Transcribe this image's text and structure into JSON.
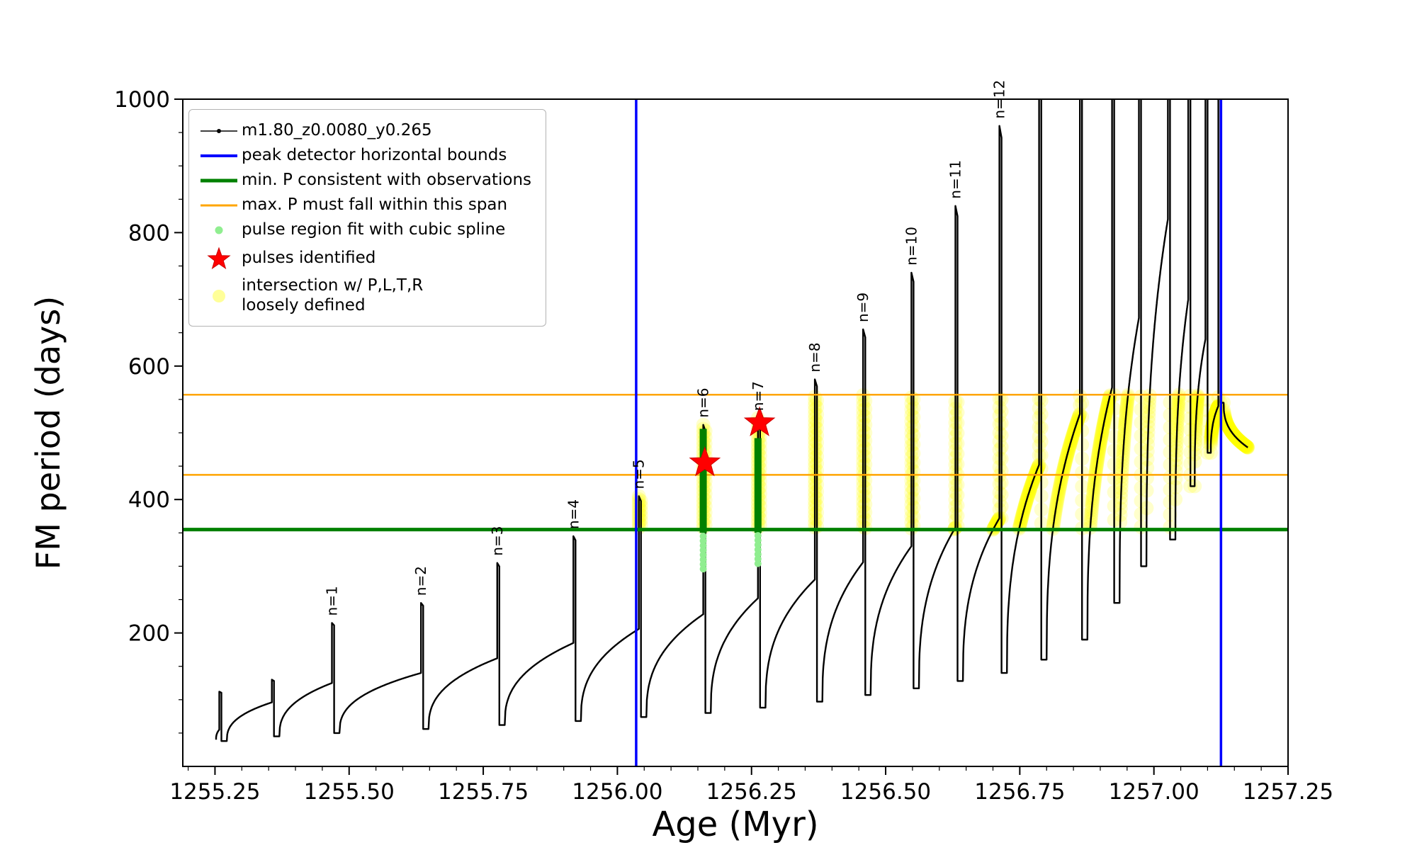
{
  "chart_data": {
    "type": "line",
    "title": "",
    "xlabel": "Age (Myr)",
    "ylabel": "FM period (days)",
    "xlim": [
      1255.19,
      1257.25
    ],
    "ylim": [
      0,
      1000
    ],
    "x_tick_labels": [
      "1255.25",
      "1255.50",
      "1255.75",
      "1256.00",
      "1256.25",
      "1256.50",
      "1256.75",
      "1257.00",
      "1257.25"
    ],
    "x_tick_values": [
      1255.25,
      1255.5,
      1255.75,
      1256.0,
      1256.25,
      1256.5,
      1256.75,
      1257.0,
      1257.25
    ],
    "x_minor_step": 0.05,
    "y_ticks": [
      200,
      400,
      600,
      800,
      1000
    ],
    "y_minor_step": 50,
    "grid": false,
    "legend_position": "upper-left",
    "series_label": "m1.80_z0.0080_y0.265",
    "peak_detector_bounds_ages": [
      1256.035,
      1257.125
    ],
    "min_P_consistent": 355,
    "max_P_span": [
      437,
      557
    ],
    "intersection_band": {
      "p_min": 355,
      "p_max": 557,
      "age_min": 1256.035,
      "age_max": 1257.25
    },
    "colors": {
      "series": "#000000",
      "bounds": "#0000ff",
      "min_p": "#008000",
      "max_p": "#ffa500",
      "spline_fit": "#008000",
      "pulse_region": "#90ee90",
      "pulses": "#ff0000",
      "intersection": "#ffff00"
    },
    "cycles": [
      {
        "t0": 1255.252,
        "p0": 40,
        "t1": 1255.258,
        "p1": 55,
        "peak": 112,
        "label": null
      },
      {
        "t0": 1255.272,
        "p0": 38,
        "t1": 1255.356,
        "p1": 96,
        "peak": 130,
        "label": null
      },
      {
        "t0": 1255.37,
        "p0": 45,
        "t1": 1255.468,
        "p1": 125,
        "peak": 215,
        "label": "n=1"
      },
      {
        "t0": 1255.482,
        "p0": 50,
        "t1": 1255.634,
        "p1": 140,
        "peak": 245,
        "label": "n=2"
      },
      {
        "t0": 1255.648,
        "p0": 56,
        "t1": 1255.776,
        "p1": 162,
        "peak": 305,
        "label": "n=3"
      },
      {
        "t0": 1255.79,
        "p0": 62,
        "t1": 1255.918,
        "p1": 185,
        "peak": 345,
        "label": "n=4"
      },
      {
        "t0": 1255.932,
        "p0": 68,
        "t1": 1256.04,
        "p1": 206,
        "peak": 405,
        "label": "n=5"
      },
      {
        "t0": 1256.054,
        "p0": 74,
        "t1": 1256.16,
        "p1": 228,
        "peak": 512,
        "label": "n=6"
      },
      {
        "t0": 1256.174,
        "p0": 80,
        "t1": 1256.262,
        "p1": 252,
        "peak": 522,
        "label": "n=7"
      },
      {
        "t0": 1256.276,
        "p0": 88,
        "t1": 1256.368,
        "p1": 280,
        "peak": 580,
        "label": "n=8"
      },
      {
        "t0": 1256.382,
        "p0": 97,
        "t1": 1256.458,
        "p1": 306,
        "peak": 655,
        "label": "n=9"
      },
      {
        "t0": 1256.472,
        "p0": 107,
        "t1": 1256.548,
        "p1": 330,
        "peak": 740,
        "label": "n=10"
      },
      {
        "t0": 1256.562,
        "p0": 117,
        "t1": 1256.63,
        "p1": 358,
        "peak": 840,
        "label": "n=11"
      },
      {
        "t0": 1256.644,
        "p0": 128,
        "t1": 1256.712,
        "p1": 372,
        "peak": 960,
        "label": "n=12"
      },
      {
        "t0": 1256.726,
        "p0": 140,
        "t1": 1256.786,
        "p1": 452,
        "peak": 1100,
        "label": null
      },
      {
        "t0": 1256.8,
        "p0": 160,
        "t1": 1256.862,
        "p1": 528,
        "peak": 1150,
        "label": null
      },
      {
        "t0": 1256.876,
        "p0": 190,
        "t1": 1256.922,
        "p1": 568,
        "peak": 1200,
        "label": null
      },
      {
        "t0": 1256.936,
        "p0": 245,
        "t1": 1256.972,
        "p1": 672,
        "peak": 1200,
        "label": null
      },
      {
        "t0": 1256.986,
        "p0": 300,
        "t1": 1257.026,
        "p1": 820,
        "peak": 1200,
        "label": null
      },
      {
        "t0": 1257.04,
        "p0": 340,
        "t1": 1257.064,
        "p1": 700,
        "peak": 1200,
        "label": null
      },
      {
        "t0": 1257.076,
        "p0": 420,
        "t1": 1257.096,
        "p1": 640,
        "peak": 1200,
        "label": null
      },
      {
        "t0": 1257.106,
        "p0": 470,
        "t1": 1257.12,
        "p1": 540,
        "peak": 1150,
        "label": null
      },
      {
        "t0": 1257.13,
        "p0": 545,
        "t1": 1257.175,
        "p1": 478,
        "peak": null,
        "label": null
      }
    ],
    "spline_segments": [
      {
        "age": 1256.16,
        "p_from": 350,
        "p_to": 506
      },
      {
        "age": 1256.262,
        "p_from": 350,
        "p_to": 492
      }
    ],
    "pulse_region_dots": [
      {
        "age": 1256.16,
        "p_from": 296,
        "p_to": 350
      },
      {
        "age": 1256.262,
        "p_from": 304,
        "p_to": 350
      }
    ],
    "pulses_identified": [
      {
        "age": 1256.163,
        "p": 455
      },
      {
        "age": 1256.265,
        "p": 515
      }
    ]
  },
  "legend": {
    "items": [
      {
        "label": "m1.80_z0.0080_y0.265",
        "marker": "line-dot",
        "color": "#000000",
        "lw": 1.5
      },
      {
        "label": "peak detector horizontal bounds",
        "marker": "line",
        "color": "#0000ff",
        "lw": 4
      },
      {
        "label": "min. P consistent with observations",
        "marker": "line",
        "color": "#008000",
        "lw": 5
      },
      {
        "label": "max. P must fall within this span",
        "marker": "line",
        "color": "#ffa500",
        "lw": 3
      },
      {
        "label": "pulse region fit with cubic spline",
        "marker": "dot",
        "color": "#90ee90",
        "lw": 0
      },
      {
        "label": "pulses identified",
        "marker": "star",
        "color": "#ff0000",
        "lw": 0
      },
      {
        "label": "intersection w/ P,L,T,R",
        "label2": "loosely defined",
        "marker": "dot-faint",
        "color": "#ffff00",
        "lw": 0
      }
    ]
  }
}
